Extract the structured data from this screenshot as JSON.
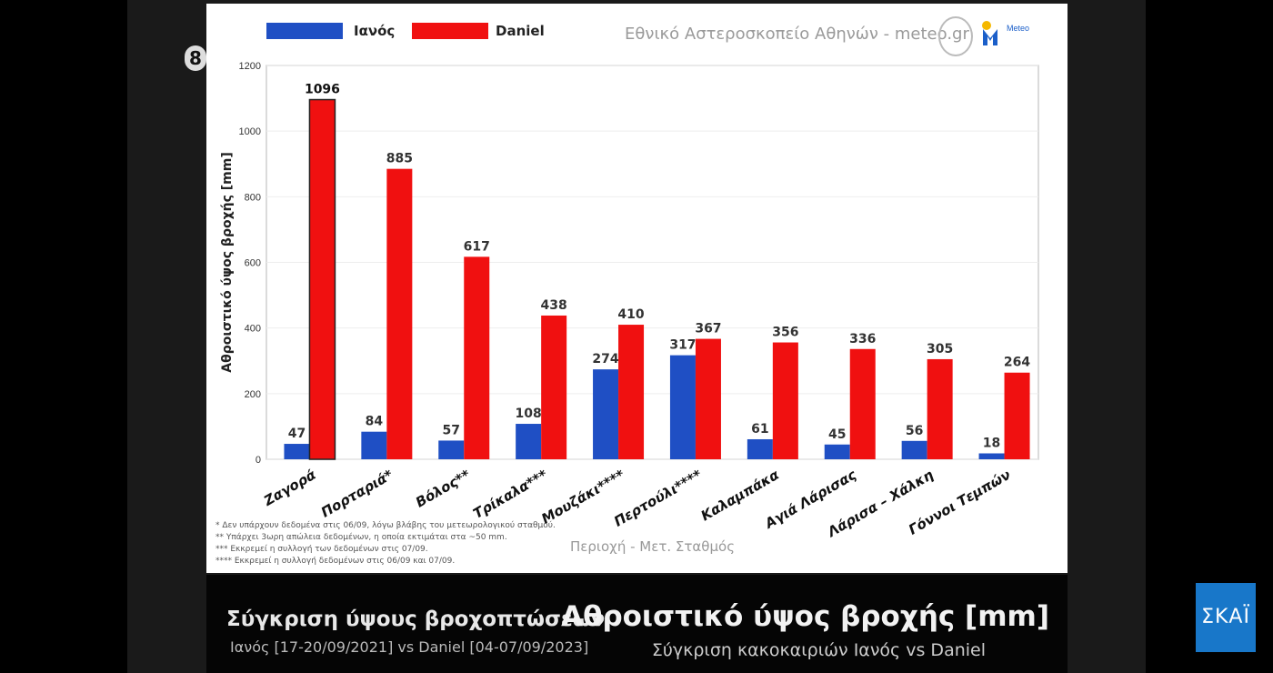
{
  "legend": {
    "series1": "Ιανός",
    "series2": "Daniel"
  },
  "colors": {
    "ianos": "#1f4fc4",
    "daniel": "#f01010",
    "grid": "#eeeeee",
    "axis": "#888888"
  },
  "source": "Εθνικό Αστεροσκοπείο Αθηνών - meteo.gr",
  "logo_text": "Meteo",
  "badge": "8",
  "notes": [
    "* Δεν υπάρχουν δεδομένα στις 06/09, λόγω βλάβης του μετεωρολογικού σταθμού.",
    "** Υπάρχει 3ωρη απώλεια δεδομένων, η οποία εκτιμάται στα ~50 mm.",
    "*** Εκκρεμεί η συλλογή των δεδομένων στις 07/09.",
    "**** Εκκρεμεί η συλλογή δεδομένων στις 06/09 και 07/09."
  ],
  "caption": {
    "left_title": "Σύγκριση ύψους βροχοπτώσεων",
    "left_sub": "Ιανός [17-20/09/2021] vs Daniel [04-07/09/2023]",
    "right_title": "Αθροιστικό ύψος βροχής [mm]",
    "right_sub": "Σύγκριση κακοκαιριών Ιανός vs Daniel"
  },
  "channel_logo": "ΣΚΑΪ",
  "chart_data": {
    "type": "bar",
    "categories": [
      "Ζαγορά",
      "Πορταριά*",
      "Βόλος**",
      "Τρίκαλα***",
      "Μουζάκι****",
      "Περτούλι****",
      "Καλαμπάκα",
      "Αγιά Λάρισας",
      "Λάρισα – Χάλκη",
      "Γόννοι Τεμπών"
    ],
    "series": [
      {
        "name": "Ιανός",
        "values": [
          47,
          84,
          57,
          108,
          274,
          317,
          61,
          45,
          56,
          18
        ]
      },
      {
        "name": "Daniel",
        "values": [
          1096,
          885,
          617,
          438,
          410,
          367,
          356,
          336,
          305,
          264
        ]
      }
    ],
    "xlabel": "Περιοχή - Μετ. Σταθμός",
    "ylabel": "Αθροιστικό ύψος βροχής [mm]",
    "ylim": [
      0,
      1200
    ],
    "yticks": [
      0,
      200,
      400,
      600,
      800,
      1000,
      1200
    ],
    "grid": true,
    "legend": "top-left"
  }
}
